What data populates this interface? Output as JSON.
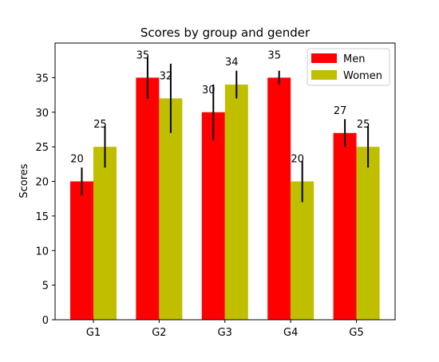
{
  "chart_data": {
    "type": "bar",
    "title": "Scores by group and gender",
    "xlabel": "",
    "ylabel": "Scores",
    "categories": [
      "G1",
      "G2",
      "G3",
      "G4",
      "G5"
    ],
    "ylim": [
      0,
      40
    ],
    "yticks": [
      0,
      5,
      10,
      15,
      20,
      25,
      30,
      35
    ],
    "grid": false,
    "legend_position": "top-right",
    "series": [
      {
        "name": "Men",
        "color": "#ff0000",
        "values": [
          20,
          35,
          30,
          35,
          27
        ],
        "errors": [
          2,
          3,
          4,
          1,
          2
        ],
        "labels": [
          "20",
          "35",
          "30",
          "35",
          "27"
        ]
      },
      {
        "name": "Women",
        "color": "#bfbf00",
        "values": [
          25,
          32,
          34,
          20,
          25
        ],
        "errors": [
          3,
          5,
          2,
          3,
          3
        ],
        "labels": [
          "25",
          "32",
          "34",
          "20",
          "25"
        ]
      }
    ]
  }
}
